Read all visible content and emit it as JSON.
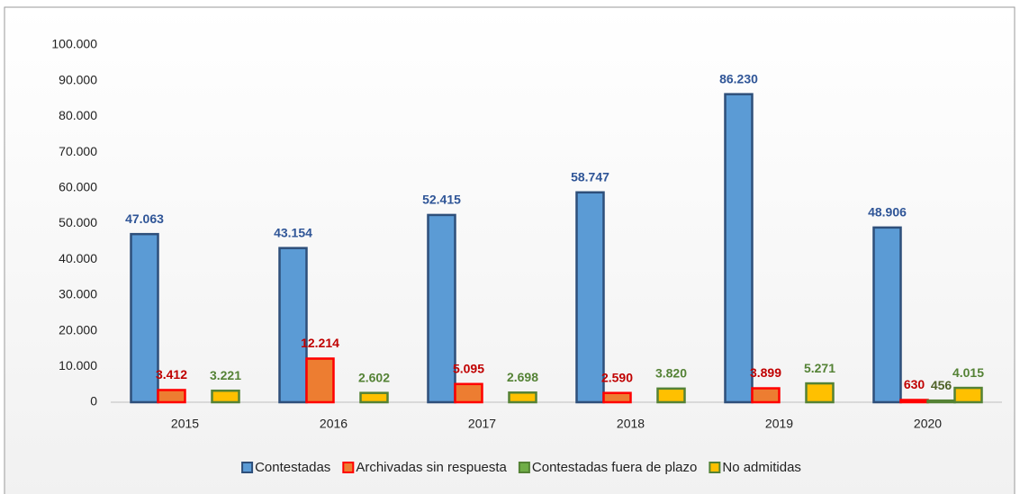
{
  "chart_data": {
    "type": "bar",
    "categories": [
      "2015",
      "2016",
      "2017",
      "2018",
      "2019",
      "2020"
    ],
    "series": [
      {
        "name": "Contestadas",
        "color": "#5b9bd5",
        "stroke": "#2e4f7a",
        "label_color": "#2f5597",
        "values": [
          47063,
          43154,
          52415,
          58747,
          86230,
          48906
        ],
        "value_labels": [
          "47.063",
          "43.154",
          "52.415",
          "58.747",
          "86.230",
          "48.906"
        ]
      },
      {
        "name": "Archivadas sin respuesta",
        "color": "#ed7d31",
        "stroke": "#ff0000",
        "label_color": "#c00000",
        "values": [
          3412,
          12214,
          5095,
          2590,
          3899,
          630
        ],
        "value_labels": [
          "3.412",
          "12.214",
          "5.095",
          "2.590",
          "3.899",
          "630"
        ]
      },
      {
        "name": "Contestadas fuera de plazo",
        "color": "#70ad47",
        "stroke": "#548235",
        "label_color": "#4f6228",
        "values": [
          null,
          null,
          null,
          null,
          null,
          456
        ],
        "value_labels": [
          null,
          null,
          null,
          null,
          null,
          "456"
        ]
      },
      {
        "name": "No admitidas",
        "color": "#ffc000",
        "stroke": "#548235",
        "label_color": "#548235",
        "values": [
          3221,
          2602,
          2698,
          3820,
          5271,
          4015
        ],
        "value_labels": [
          "3.221",
          "2.602",
          "2.698",
          "3.820",
          "5.271",
          "4.015"
        ]
      }
    ],
    "ylim": [
      0,
      100000
    ],
    "yticks": [
      0,
      {
        "value": 10000,
        "label": "10.000"
      },
      {
        "value": 20000,
        "label": "20.000"
      },
      {
        "value": 30000,
        "label": "30.000"
      },
      {
        "value": 40000,
        "label": "40.000"
      },
      {
        "value": 50000,
        "label": "50.000"
      },
      {
        "value": 60000,
        "label": "60.000"
      },
      {
        "value": 70000,
        "label": "70.000"
      },
      {
        "value": 80000,
        "label": "80.000"
      },
      {
        "value": 90000,
        "label": "90.000"
      },
      {
        "value": 100000,
        "label": "100.000"
      }
    ],
    "legend": "bottom"
  }
}
